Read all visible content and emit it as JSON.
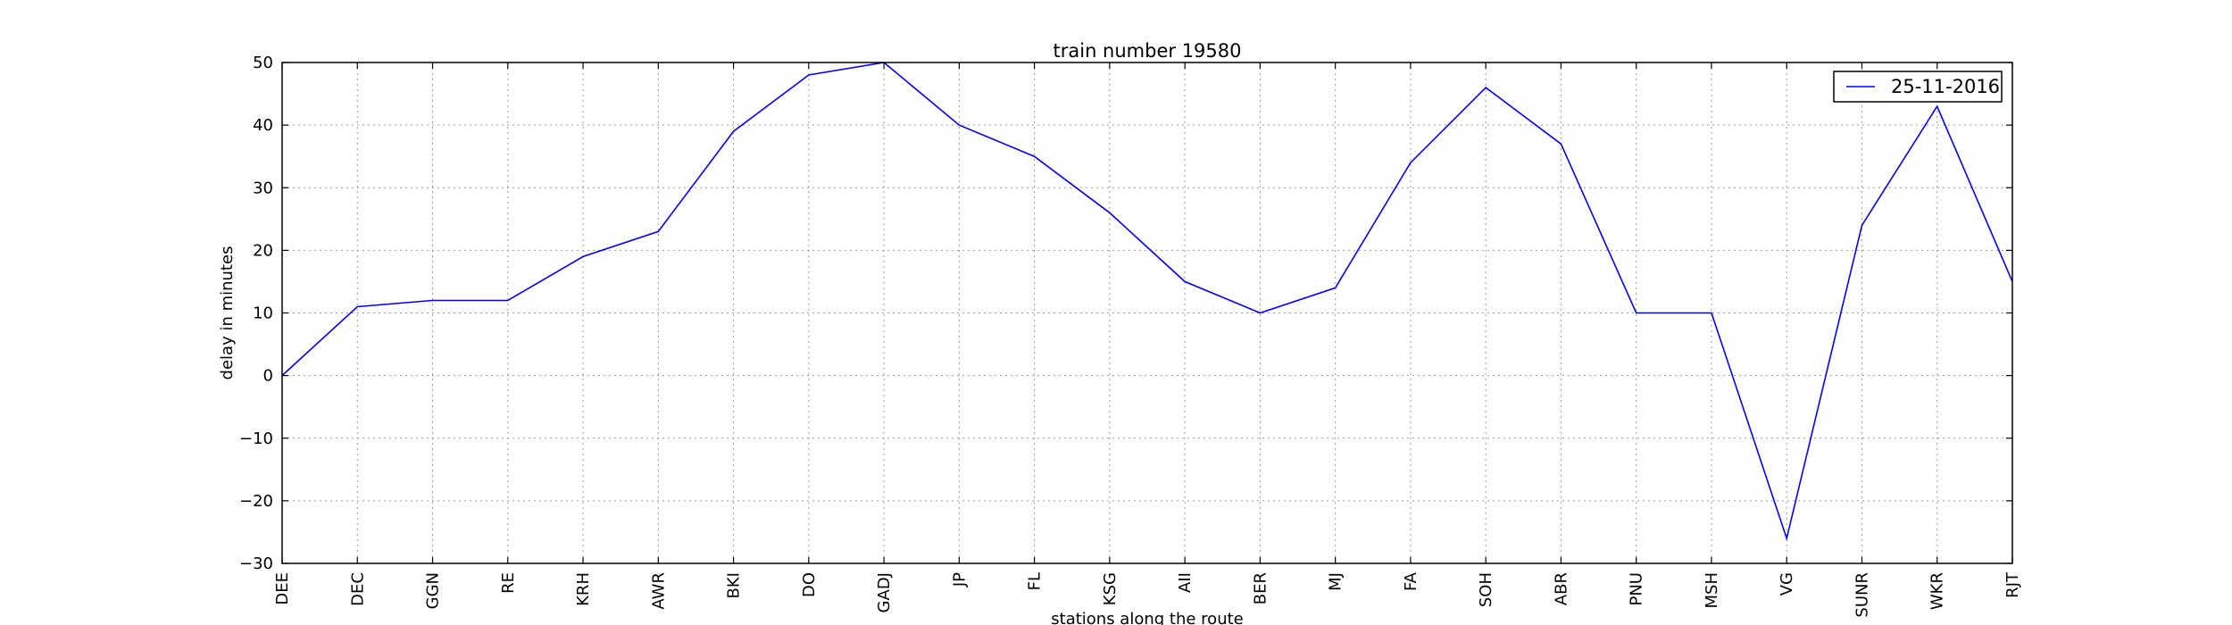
{
  "chart_data": {
    "type": "line",
    "title": "train number 19580",
    "xlabel": "stations along the route",
    "ylabel": "delay in minutes",
    "categories": [
      "DEE",
      "DEC",
      "GGN",
      "RE",
      "KRH",
      "AWR",
      "BKI",
      "DO",
      "GADJ",
      "JP",
      "FL",
      "KSG",
      "AII",
      "BER",
      "MJ",
      "FA",
      "SOH",
      "ABR",
      "PNU",
      "MSH",
      "VG",
      "SUNR",
      "WKR",
      "RJT"
    ],
    "series": [
      {
        "name": "25-11-2016",
        "color": "#0000ff",
        "values": [
          0,
          11,
          12,
          12,
          19,
          23,
          39,
          48,
          50,
          40,
          35,
          26,
          15,
          10,
          14,
          34,
          46,
          37,
          10,
          10,
          -26,
          24,
          43,
          15
        ]
      }
    ],
    "ylim": [
      -30,
      50
    ],
    "yticks": [
      -30,
      -20,
      -10,
      0,
      10,
      20,
      30,
      40,
      50
    ],
    "grid": true,
    "legend_position": "top-right"
  }
}
